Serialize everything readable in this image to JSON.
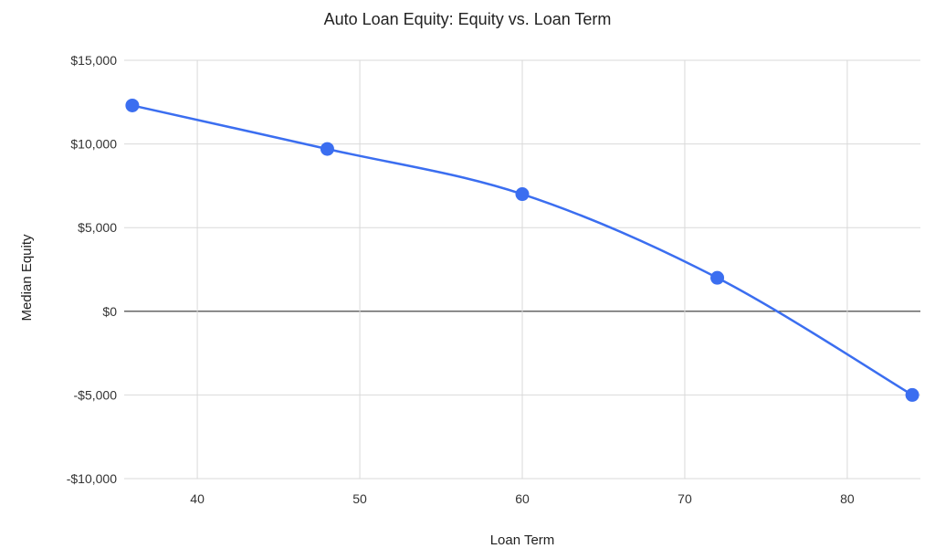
{
  "chart_data": {
    "type": "line",
    "title": "Auto Loan Equity: Equity vs. Loan Term",
    "xlabel": "Loan Term",
    "ylabel": "Median Equity",
    "x": [
      36,
      48,
      60,
      72,
      84
    ],
    "series": [
      {
        "values": [
          12300,
          9700,
          7000,
          2000,
          -5000
        ]
      }
    ],
    "xlim": [
      35.5,
      84.5
    ],
    "ylim": [
      -10000,
      15000
    ],
    "x_ticks": [
      40,
      50,
      60,
      70,
      80
    ],
    "x_tick_labels": [
      "40",
      "50",
      "60",
      "70",
      "80"
    ],
    "y_ticks": [
      15000,
      10000,
      5000,
      0,
      -5000,
      -10000
    ],
    "y_tick_labels": [
      "$15,000",
      "$10,000",
      "$5,000",
      "$0",
      "-$5,000",
      "-$10,000"
    ],
    "grid": true,
    "smooth": true,
    "legend": "none",
    "colors": {
      "series": "#3b6ef0",
      "grid": "#d9d9d9",
      "zero_line": "#333333"
    }
  }
}
